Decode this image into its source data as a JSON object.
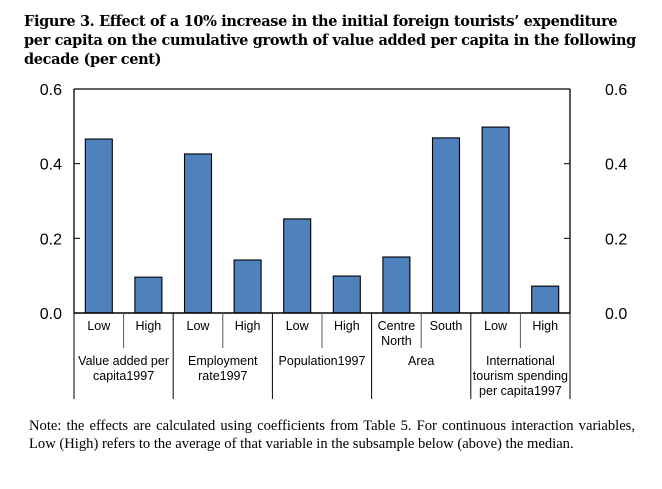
{
  "figure": {
    "title": "Figure 3. Effect of a 10% increase in the initial foreign tourists’ expenditure per capita on the cumulative growth of value added per capita in the following decade (per cent)",
    "note": "Note: the effects are calculated using coefficients from Table 5. For continuous interaction variables, Low (High) refers to the average of that variable in the subsample below (above) the median."
  },
  "chart_data": {
    "type": "bar",
    "title": "Effect of a 10% increase in the initial foreign tourists’ expenditure per capita on the cumulative growth of value added per capita in the following decade (per cent)",
    "xlabel": "",
    "ylabel": "",
    "ylim": [
      0,
      0.6
    ],
    "yticks": [
      "0.0",
      "0.2",
      "0.4",
      "0.6"
    ],
    "ytick_values": [
      0,
      0.2,
      0.4,
      0.6
    ],
    "secondary_y_axis": true,
    "grid": false,
    "bar_color": "#4f81bd",
    "categories": [
      "Low",
      "High",
      "Low",
      "High",
      "Low",
      "High",
      "Centre North",
      "South",
      "Low",
      "High"
    ],
    "category_lines": [
      [
        "Low"
      ],
      [
        "High"
      ],
      [
        "Low"
      ],
      [
        "High"
      ],
      [
        "Low"
      ],
      [
        "High"
      ],
      [
        "Centre",
        "North"
      ],
      [
        "South"
      ],
      [
        "Low"
      ],
      [
        "High"
      ]
    ],
    "values": [
      0.466,
      0.096,
      0.426,
      0.142,
      0.252,
      0.099,
      0.15,
      0.469,
      0.498,
      0.072
    ],
    "groups": [
      {
        "label_lines": [
          "Value added per",
          "capita1997"
        ],
        "span": 2
      },
      {
        "label_lines": [
          "Employment",
          "rate1997"
        ],
        "span": 2
      },
      {
        "label_lines": [
          "Population1997"
        ],
        "span": 2
      },
      {
        "label_lines": [
          "Area"
        ],
        "span": 2
      },
      {
        "label_lines": [
          "International",
          "tourism spending",
          "per capita1997"
        ],
        "span": 2
      }
    ]
  }
}
